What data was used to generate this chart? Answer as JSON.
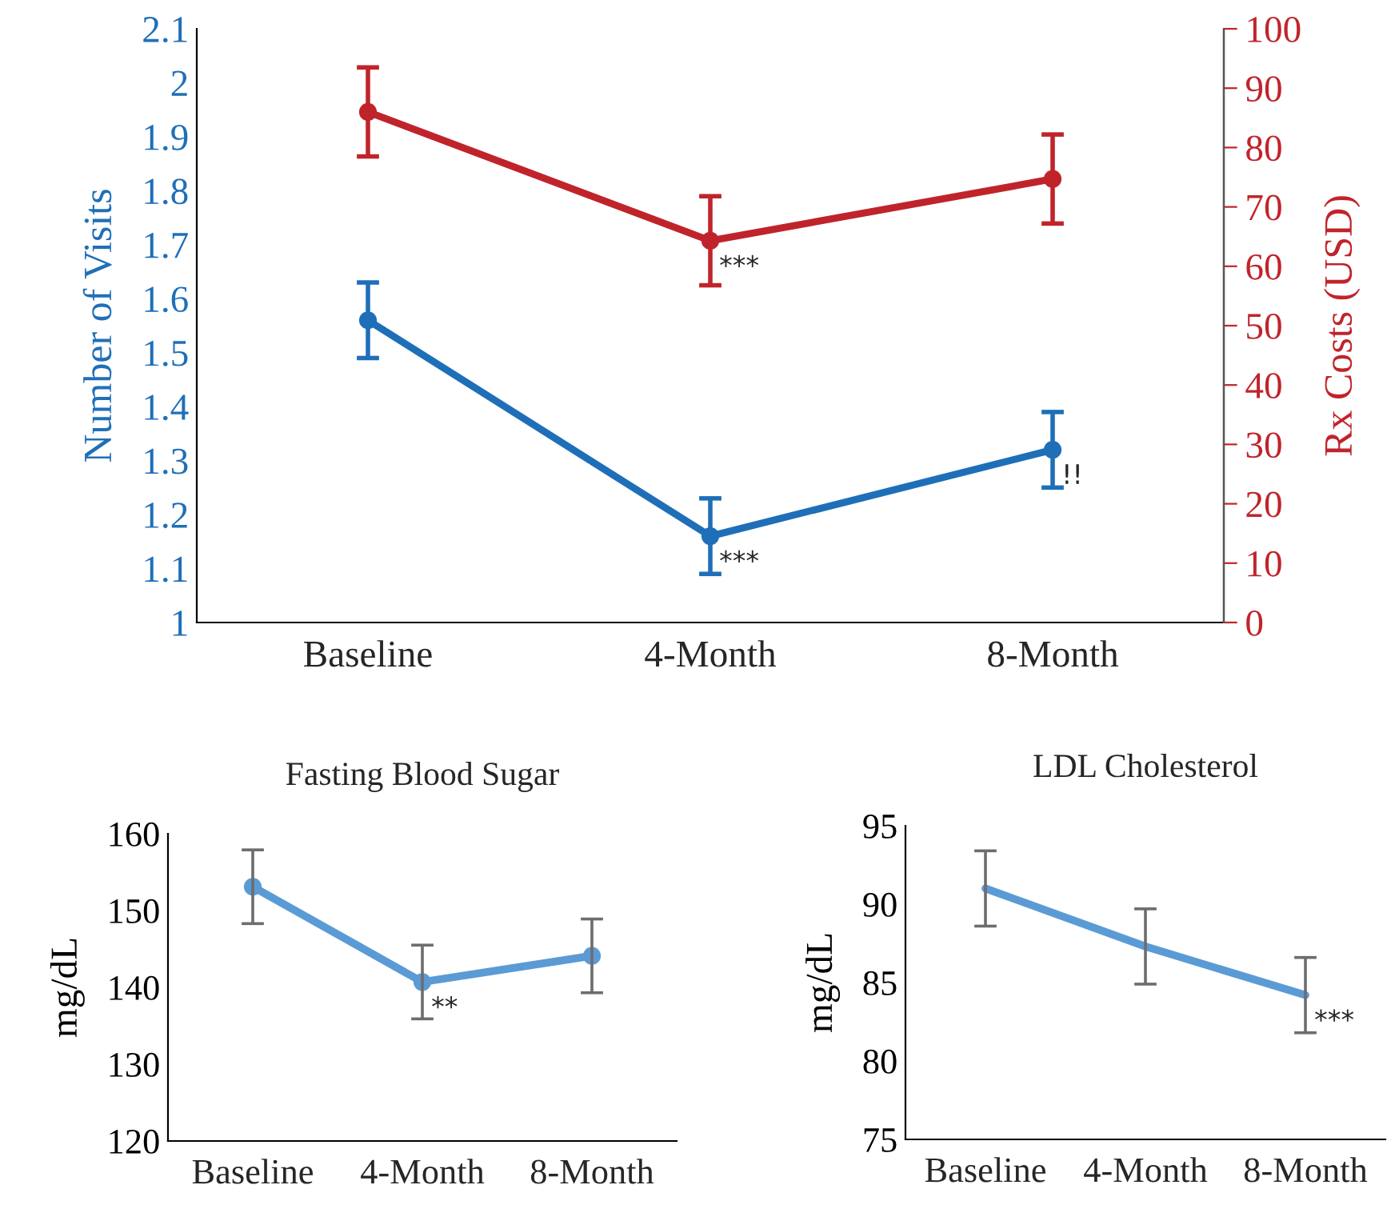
{
  "chart_data": [
    {
      "type": "line",
      "categories": [
        "Baseline",
        "4-Month",
        "8-Month"
      ],
      "ylabel": "Number of Visits",
      "y2label": "Rx Costs (USD)",
      "ylim": [
        1,
        2.1
      ],
      "yticks": [
        1,
        1.1,
        1.2,
        1.3,
        1.4,
        1.5,
        1.6,
        1.7,
        1.8,
        1.9,
        2,
        2.1
      ],
      "y2lim": [
        0,
        100
      ],
      "y2ticks": [
        0,
        10,
        20,
        30,
        40,
        50,
        60,
        70,
        80,
        90,
        100
      ],
      "marker": "circle",
      "line_style": "solid",
      "grid": false,
      "legend": false,
      "series": [
        {
          "color": "#1f6fb8",
          "values": [
            1.56,
            1.16,
            1.32
          ],
          "errors": [
            0.07,
            0.07,
            0.07
          ]
        },
        {
          "color": "#c0242b",
          "axis": "y2",
          "values": [
            86,
            64.3,
            74.7
          ],
          "errors": [
            7.5,
            7.5,
            7.5
          ]
        }
      ],
      "annotations": [
        {
          "text": "***",
          "x": "4-Month",
          "y": 1.16
        },
        "***",
        {
          "text": "!!",
          "x": "8-Month",
          "y": 1.32
        }
      ]
    },
    {
      "type": "line",
      "title": "Fasting Blood Sugar",
      "categories": [
        "Baseline",
        "4-Month",
        "8-Month"
      ],
      "ylabel": "mg/dL",
      "ylim": [
        120,
        160
      ],
      "yticks": [
        120,
        130,
        140,
        150,
        160
      ],
      "marker": "circle",
      "line_style": "solid",
      "grid": false,
      "legend": false,
      "series": [
        {
          "color": "#5b9bd5",
          "values": [
            153.1,
            140.7,
            144.1
          ],
          "errors": [
            4.8,
            4.8,
            4.8
          ]
        }
      ],
      "annotations": [
        {
          "text": "**",
          "x": "4-Month",
          "y": 140.7
        }
      ]
    },
    {
      "type": "line",
      "title": "LDL Cholesterol",
      "categories": [
        "Baseline",
        "4-Month",
        "8-Month"
      ],
      "ylabel": "mg/dL",
      "ylim": [
        75,
        95
      ],
      "yticks": [
        75,
        80,
        85,
        90,
        95
      ],
      "marker": "none",
      "line_style": "solid",
      "grid": false,
      "legend": false,
      "series": [
        {
          "color": "#5b9bd5",
          "values": [
            91,
            87.3,
            84.2
          ],
          "errors": [
            2.4,
            2.4,
            2.4
          ]
        }
      ],
      "annotations": [
        {
          "text": "***",
          "x": "8-Month",
          "y": 84.2
        }
      ]
    }
  ]
}
